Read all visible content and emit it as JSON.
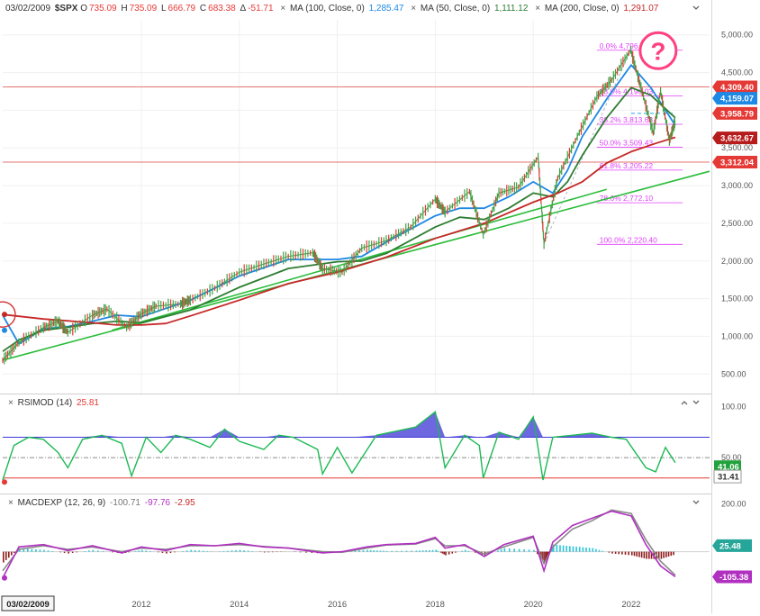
{
  "main": {
    "date": "03/02/2009",
    "symbol": "$SPX",
    "open_label": "O",
    "open": "735.09",
    "high_label": "H",
    "high": "735.09",
    "low_label": "L",
    "low": "666.79",
    "close_label": "C",
    "close": "683.38",
    "change_label": "Δ",
    "change": "-51.71",
    "ma100_label": "MA (100, Close, 0)",
    "ma100_value": "1,285.47",
    "ma50_label": "MA (50, Close, 0)",
    "ma50_value": "1,111.12",
    "ma200_label": "MA (200, Close, 0)",
    "ma200_value": "1,291.07",
    "collapse_icon": "chevron-down-icon",
    "question_mark": "?"
  },
  "rsi": {
    "label": "RSIMOD (14)",
    "value": "25.81"
  },
  "macd": {
    "label": "MACDEXP (12, 26, 9)",
    "v1": "-100.71",
    "v2": "-97.76",
    "v3": "-2.95"
  },
  "x_axis": {
    "date_tag": "03/02/2009"
  },
  "colors": {
    "price_up": "#43a047",
    "price_down": "#e53935",
    "ma100": "#1e88e5",
    "ma50": "#2e7d32",
    "ma200": "#c62828",
    "fib": "#e040fb",
    "rsi_line": "#1db954",
    "rsi_fill": "#3d35d6",
    "macd_line": "#b030c0",
    "macd_signal": "#888888",
    "hist_up": "#26c6da",
    "hist_down": "#8e1b1b"
  },
  "chart_data": [
    {
      "type": "line",
      "title": "$SPX",
      "x_ticks": [
        "2012",
        "2014",
        "2016",
        "2018",
        "2020",
        "2022"
      ],
      "x_tick_values": [
        2012,
        2014,
        2016,
        2018,
        2020,
        2022
      ],
      "xlim": [
        2009.17,
        2023.6
      ],
      "y_ticks": [
        "5,000.00",
        "4,500.00",
        "4,000.00",
        "3,500.00",
        "3,000.00",
        "2,500.00",
        "2,000.00",
        "1,500.00",
        "1,000.00",
        "500.00"
      ],
      "y_tick_values": [
        5000,
        4500,
        4000,
        3500,
        3000,
        2500,
        2000,
        1500,
        1000,
        500
      ],
      "ylim": [
        300,
        5200
      ],
      "series": [
        {
          "name": "SPX",
          "color": "#43a047",
          "x": [
            2009.17,
            2009.5,
            2010.0,
            2010.3,
            2010.5,
            2011.0,
            2011.3,
            2011.7,
            2012.0,
            2012.3,
            2012.8,
            2013.0,
            2013.5,
            2014.0,
            2014.5,
            2015.0,
            2015.5,
            2015.7,
            2016.1,
            2016.5,
            2017.0,
            2017.5,
            2018.0,
            2018.2,
            2018.7,
            2018.98,
            2019.3,
            2019.7,
            2020.1,
            2020.22,
            2020.5,
            2020.9,
            2021.3,
            2021.6,
            2021.99,
            2022.2,
            2022.45,
            2022.6,
            2022.78,
            2022.9
          ],
          "y": [
            683,
            920,
            1115,
            1200,
            1050,
            1280,
            1360,
            1120,
            1300,
            1400,
            1430,
            1480,
            1640,
            1850,
            1960,
            2060,
            2110,
            1900,
            1850,
            2170,
            2270,
            2450,
            2820,
            2650,
            2920,
            2350,
            2900,
            2980,
            3380,
            2230,
            3100,
            3650,
            4180,
            4400,
            4800,
            4300,
            3700,
            4250,
            3600,
            3860
          ]
        },
        {
          "name": "MA (100)",
          "color": "#1e88e5",
          "x": [
            2009.17,
            2009.5,
            2010.0,
            2010.5,
            2011.0,
            2011.5,
            2012.0,
            2013.0,
            2014.0,
            2015.0,
            2016.0,
            2016.5,
            2017.0,
            2018.0,
            2018.5,
            2019.0,
            2019.5,
            2020.0,
            2020.4,
            2020.7,
            2021.0,
            2021.5,
            2022.0,
            2022.4,
            2022.9
          ],
          "y": [
            1280,
            900,
            1100,
            1130,
            1200,
            1280,
            1260,
            1480,
            1800,
            2020,
            2020,
            2060,
            2250,
            2600,
            2700,
            2700,
            2850,
            3050,
            2900,
            3200,
            3650,
            4150,
            4600,
            4300,
            3800
          ]
        },
        {
          "name": "MA (50)",
          "color": "#2e7d32",
          "x": [
            2009.17,
            2009.5,
            2010.0,
            2010.5,
            2011.0,
            2011.5,
            2012.0,
            2013.0,
            2014.0,
            2015.0,
            2016.0,
            2016.5,
            2017.0,
            2018.0,
            2018.5,
            2019.0,
            2019.5,
            2020.0,
            2020.4,
            2020.7,
            2021.0,
            2021.5,
            2022.0,
            2022.4,
            2022.9
          ],
          "y": [
            800,
            950,
            1080,
            1120,
            1170,
            1200,
            1180,
            1350,
            1650,
            1900,
            1990,
            2000,
            2100,
            2450,
            2580,
            2550,
            2700,
            2900,
            2850,
            3050,
            3400,
            3900,
            4300,
            4200,
            3900
          ]
        },
        {
          "name": "MA (200)",
          "color": "#c62828",
          "x": [
            2009.17,
            2010.0,
            2011.0,
            2011.5,
            2012.0,
            2012.5,
            2013.0,
            2014.0,
            2015.0,
            2016.0,
            2017.0,
            2018.0,
            2019.0,
            2020.0,
            2020.5,
            2021.0,
            2021.5,
            2022.0,
            2022.5,
            2022.9
          ],
          "y": [
            1290,
            1230,
            1180,
            1150,
            1150,
            1170,
            1270,
            1480,
            1700,
            1850,
            2050,
            2300,
            2500,
            2780,
            2900,
            3050,
            3300,
            3450,
            3560,
            3640
          ]
        }
      ],
      "trendlines": [
        {
          "from": [
            2009.17,
            683
          ],
          "to": [
            2023.6,
            3190
          ]
        },
        {
          "from": [
            2011.4,
            1080
          ],
          "to": [
            2021.5,
            2950
          ]
        }
      ],
      "horizontal_lines": [
        4309.4,
        3312.04
      ],
      "fib_levels": [
        {
          "label": "0.0%",
          "value": "4,796.45"
        },
        {
          "label": "23.6%",
          "value": "4,190.03"
        },
        {
          "label": "38.2%",
          "value": "3,813.63"
        },
        {
          "label": "50.0%",
          "value": "3,509.43"
        },
        {
          "label": "61.8%",
          "value": "3,205.22"
        },
        {
          "label": "78.6%",
          "value": "2,772.10"
        },
        {
          "label": "100.0%",
          "value": "2,220.40"
        }
      ],
      "price_tags": [
        {
          "value": "4,309.40",
          "color": "#e53935"
        },
        {
          "value": "4,159.07",
          "color": "#1e88e5"
        },
        {
          "value": "3,958.79",
          "color": "#e53935"
        },
        {
          "value": "3,632.67",
          "color": "#b71c1c"
        },
        {
          "value": "3,312.04",
          "color": "#e53935"
        }
      ]
    },
    {
      "type": "line",
      "title": "RSIMOD (14)",
      "y_ticks": [
        "100.00",
        "50.00"
      ],
      "y_tick_values": [
        100,
        50
      ],
      "ylim": [
        20,
        105
      ],
      "levels": [
        70,
        50,
        30
      ],
      "series": [
        {
          "name": "RSIMOD (14)",
          "color": "#1db954",
          "x": [
            2009.17,
            2009.4,
            2009.7,
            2010.0,
            2010.3,
            2010.5,
            2010.8,
            2011.2,
            2011.6,
            2011.8,
            2012.1,
            2012.4,
            2012.7,
            2013.0,
            2013.4,
            2013.7,
            2014.0,
            2014.5,
            2014.8,
            2015.1,
            2015.6,
            2015.7,
            2016.0,
            2016.3,
            2016.8,
            2017.2,
            2017.6,
            2018.0,
            2018.2,
            2018.6,
            2018.9,
            2018.98,
            2019.3,
            2019.7,
            2020.0,
            2020.2,
            2020.4,
            2020.8,
            2021.2,
            2021.6,
            2021.9,
            2022.3,
            2022.5,
            2022.7,
            2022.9
          ],
          "y": [
            28,
            62,
            70,
            68,
            55,
            40,
            68,
            72,
            64,
            32,
            70,
            55,
            72,
            68,
            60,
            78,
            66,
            58,
            72,
            70,
            58,
            34,
            60,
            35,
            72,
            76,
            80,
            95,
            40,
            72,
            62,
            30,
            75,
            68,
            90,
            28,
            70,
            72,
            74,
            70,
            68,
            40,
            36,
            60,
            45
          ]
        }
      ],
      "current_tags": [
        "41.06",
        "31.41"
      ]
    },
    {
      "type": "line",
      "title": "MACDEXP (12, 26, 9)",
      "y_ticks": [
        "200.00"
      ],
      "y_tick_values": [
        200
      ],
      "ylim": [
        -160,
        210
      ],
      "series": [
        {
          "name": "MACD",
          "color": "#b030c0",
          "x": [
            2009.17,
            2009.5,
            2010.0,
            2010.5,
            2011.0,
            2011.6,
            2012.0,
            2012.5,
            2013.0,
            2013.5,
            2014.0,
            2014.5,
            2015.0,
            2015.7,
            2016.1,
            2016.6,
            2017.0,
            2017.6,
            2018.0,
            2018.2,
            2018.6,
            2019.0,
            2019.4,
            2020.0,
            2020.22,
            2020.4,
            2020.8,
            2021.2,
            2021.6,
            2022.0,
            2022.3,
            2022.6,
            2022.9
          ],
          "y": [
            -110,
            20,
            30,
            5,
            25,
            -5,
            20,
            5,
            30,
            25,
            35,
            20,
            15,
            -5,
            0,
            20,
            30,
            35,
            60,
            15,
            30,
            -20,
            30,
            65,
            -80,
            40,
            110,
            140,
            170,
            150,
            30,
            -60,
            -105
          ]
        },
        {
          "name": "Signal",
          "color": "#888888",
          "x": [
            2009.17,
            2009.5,
            2010.0,
            2010.5,
            2011.0,
            2011.6,
            2012.0,
            2012.5,
            2013.0,
            2013.5,
            2014.0,
            2014.5,
            2015.0,
            2015.7,
            2016.1,
            2016.6,
            2017.0,
            2017.6,
            2018.0,
            2018.2,
            2018.6,
            2019.0,
            2019.4,
            2020.0,
            2020.22,
            2020.4,
            2020.8,
            2021.2,
            2021.6,
            2022.0,
            2022.3,
            2022.6,
            2022.9
          ],
          "y": [
            -80,
            10,
            25,
            10,
            20,
            0,
            15,
            10,
            25,
            25,
            30,
            22,
            15,
            0,
            -2,
            15,
            28,
            32,
            55,
            25,
            25,
            -10,
            20,
            60,
            -50,
            20,
            95,
            130,
            175,
            160,
            50,
            -40,
            -98
          ]
        }
      ],
      "current_tags": [
        "25.48",
        "-105.38"
      ]
    }
  ]
}
